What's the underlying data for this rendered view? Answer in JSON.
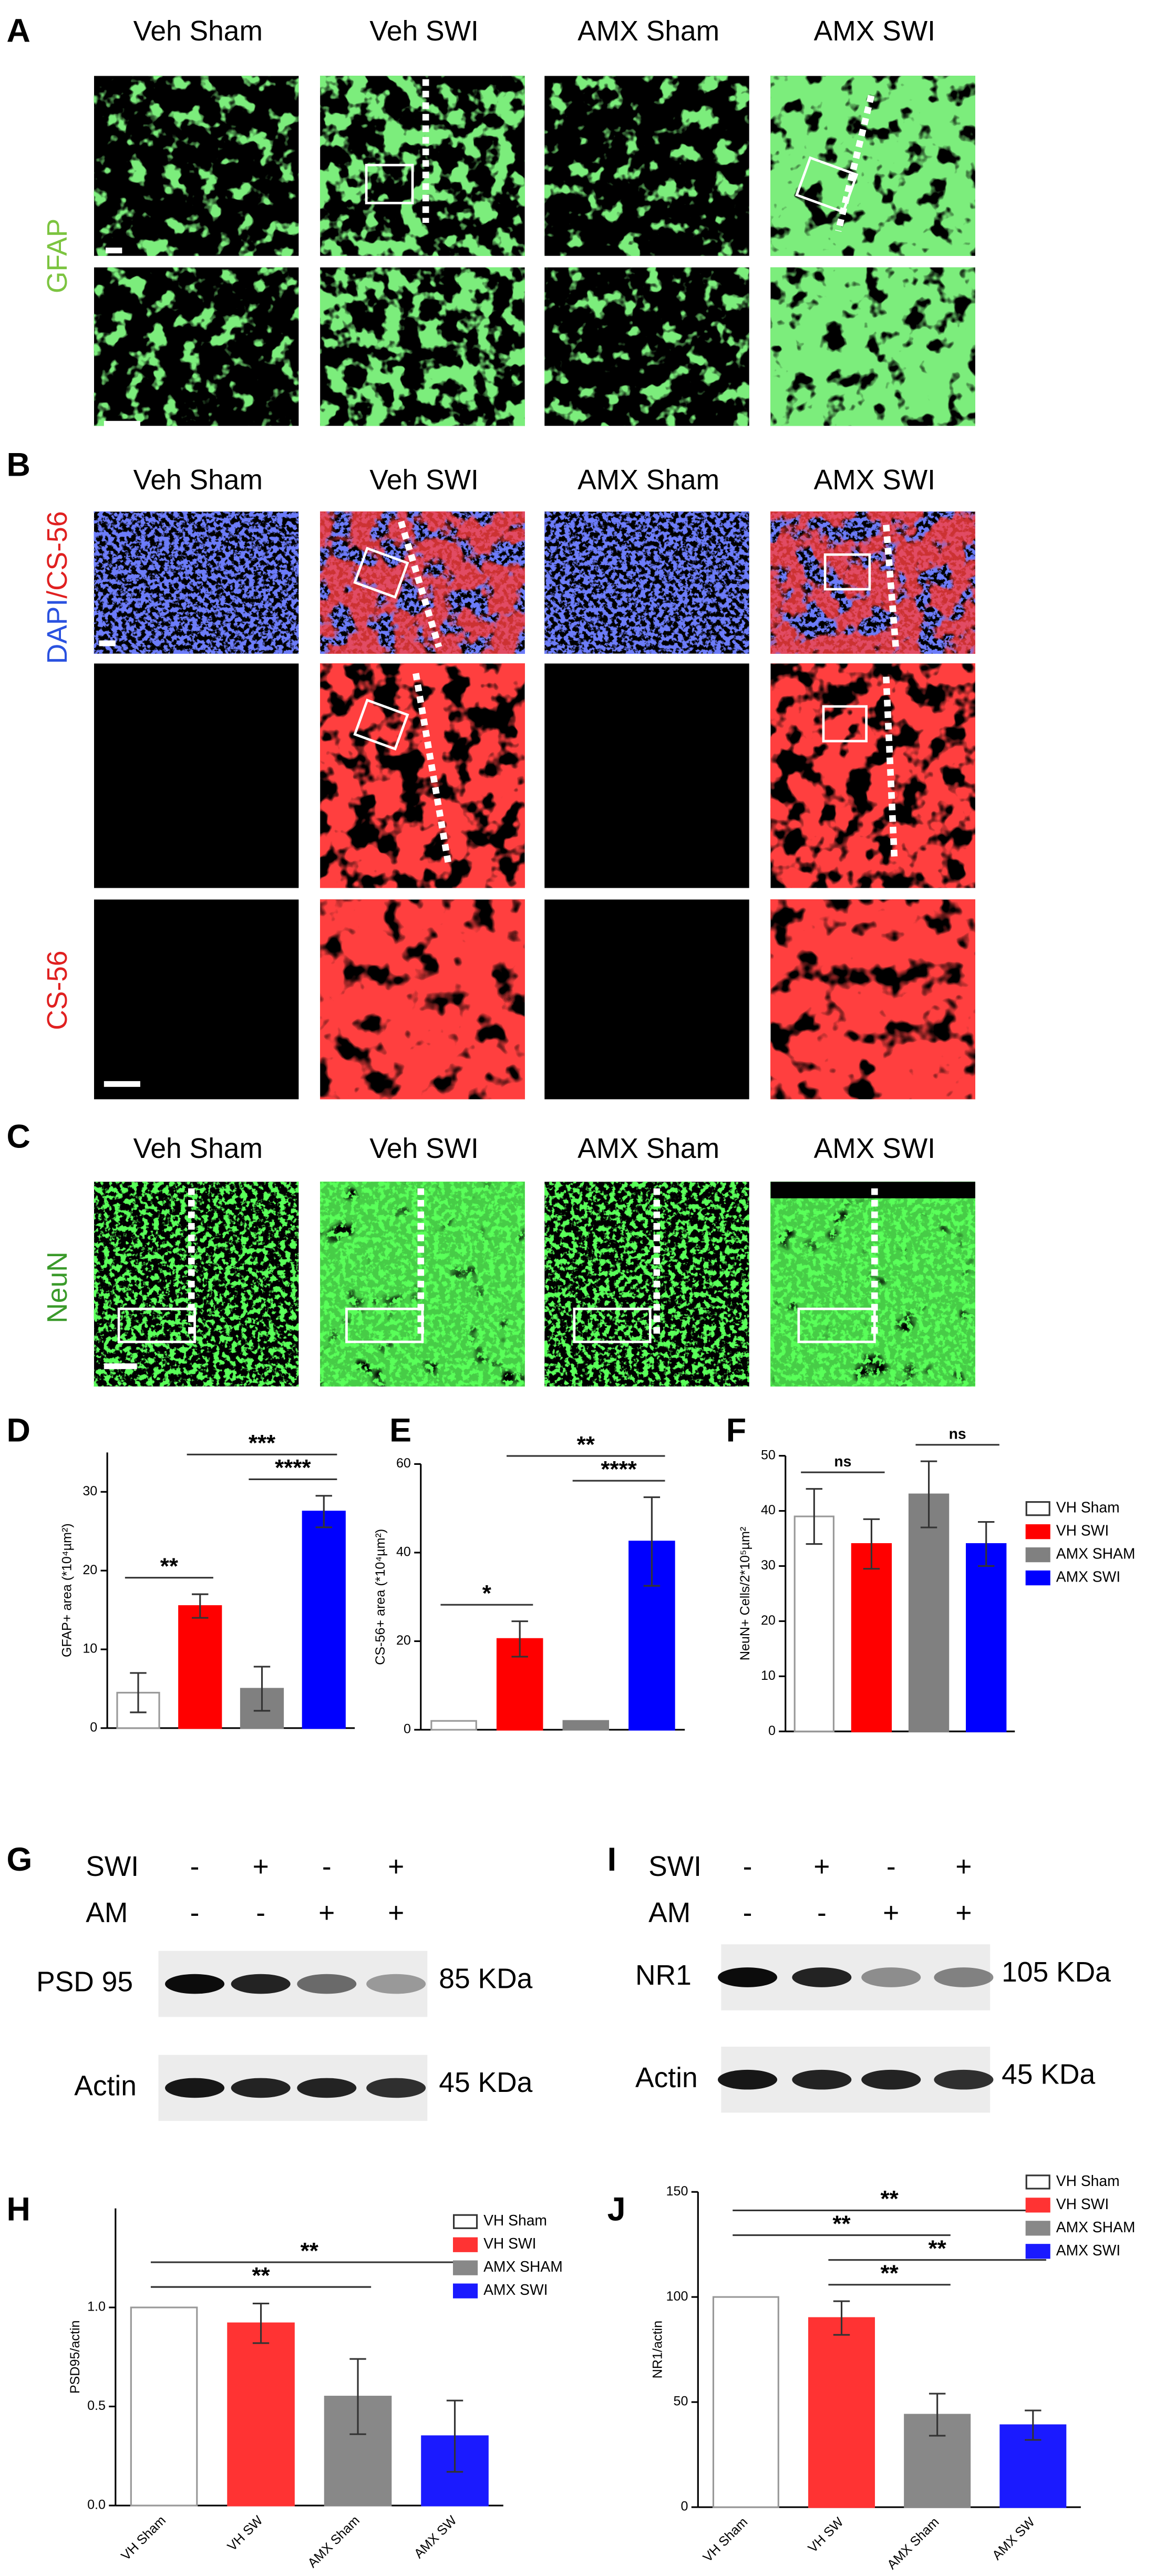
{
  "figure": {
    "panel_A": {
      "label": "A",
      "columns": [
        "Veh Sham",
        "Veh SWI",
        "AMX Sham",
        "AMX SWI"
      ],
      "row_label": "GFAP"
    },
    "panel_B": {
      "label": "B",
      "columns": [
        "Veh Sham",
        "Veh SWI",
        "AMX Sham",
        "AMX SWI"
      ],
      "row_labels": [
        [
          "DAPI",
          "/CS-56"
        ],
        "CS-56"
      ]
    },
    "panel_C": {
      "label": "C",
      "columns": [
        "Veh Sham",
        "Veh SWI",
        "AMX Sham",
        "AMX SWI"
      ],
      "row_label": "NeuN"
    },
    "panel_G": {
      "label": "G",
      "row_labels": [
        "SWI",
        "AM"
      ],
      "signs": [
        [
          "-",
          "+",
          "-",
          "+"
        ],
        [
          "-",
          "-",
          "+",
          "+"
        ]
      ],
      "bands": [
        {
          "name": "PSD 95",
          "size": "85 KDa"
        },
        {
          "name": "Actin",
          "size": "45 KDa"
        }
      ]
    },
    "panel_I": {
      "label": "I",
      "row_labels": [
        "SWI",
        "AM"
      ],
      "signs": [
        [
          "-",
          "+",
          "-",
          "+"
        ],
        [
          "-",
          "-",
          "+",
          "+"
        ]
      ],
      "bands": [
        {
          "name": "NR1",
          "size": "105 KDa"
        },
        {
          "name": "Actin",
          "size": "45 KDa"
        }
      ]
    }
  },
  "chart_data": [
    {
      "type": "bar",
      "panel": "D",
      "ylabel": "GFAP+ area (*10⁴µm²)",
      "values": [
        4.5,
        15.5,
        5,
        27.5
      ],
      "errors": [
        2.5,
        1.5,
        2.8,
        2
      ],
      "colors": [
        "#ffffff",
        "#ff0000",
        "#808080",
        "#0000ff"
      ],
      "ylim": [
        0,
        35
      ],
      "yticks": [
        0,
        10,
        20,
        30
      ],
      "annotations": [
        {
          "text": "**",
          "from": 0,
          "to": 1
        },
        {
          "text": "****",
          "from": 2,
          "to": 3
        },
        {
          "text": "***",
          "from": 1,
          "to": 3
        }
      ]
    },
    {
      "type": "bar",
      "panel": "E",
      "ylabel": "CS-56+ area (*10⁴µm²)",
      "values": [
        2,
        20.5,
        2,
        42.5
      ],
      "errors": [
        null,
        4,
        null,
        10
      ],
      "colors": [
        "#ffffff",
        "#ff0000",
        "#808080",
        "#0000ff"
      ],
      "ylim": [
        0,
        60
      ],
      "yticks": [
        0,
        20,
        40,
        60
      ],
      "annotations": [
        {
          "text": "*",
          "from": 0,
          "to": 1
        },
        {
          "text": "****",
          "from": 2,
          "to": 3
        },
        {
          "text": "**",
          "from": 1,
          "to": 3
        }
      ]
    },
    {
      "type": "bar",
      "panel": "F",
      "ylabel": "NeuN+ Cells/2*10⁵µm²",
      "values": [
        39,
        34,
        43,
        34
      ],
      "errors": [
        5,
        4.5,
        6,
        4
      ],
      "colors": [
        "#ffffff",
        "#ff0000",
        "#808080",
        "#0000ff"
      ],
      "ylim": [
        0,
        50
      ],
      "yticks": [
        0,
        10,
        20,
        30,
        40,
        50
      ],
      "legend": [
        "VH Sham",
        "VH SWI",
        "AMX SHAM",
        "AMX SWI"
      ],
      "annotations": [
        {
          "text": "ns",
          "from": 0,
          "to": 1
        },
        {
          "text": "ns",
          "from": 2,
          "to": 3
        }
      ]
    },
    {
      "type": "bar",
      "panel": "H",
      "ylabel": "PSD95/actin",
      "categories": [
        "VH Sham",
        "VH SW",
        "AMX Sham",
        "AMX SW"
      ],
      "values": [
        1.0,
        0.92,
        0.55,
        0.35
      ],
      "errors": [
        null,
        0.1,
        0.19,
        0.18
      ],
      "colors": [
        "#ffffff",
        "#ff3333",
        "#888888",
        "#1a1aff"
      ],
      "ylim": [
        0,
        1.5
      ],
      "yticks": [
        {
          "value": 0,
          "label": "0.0"
        },
        {
          "value": 0.5,
          "label": "0.5"
        },
        {
          "value": 1,
          "label": "1.0"
        }
      ],
      "legend": [
        "VH Sham",
        "VH SWI",
        "AMX SHAM",
        "AMX SWI"
      ],
      "annotations": [
        {
          "text": "**",
          "from": 0,
          "to": 2
        },
        {
          "text": "**",
          "from": 0,
          "to": 3
        }
      ]
    },
    {
      "type": "bar",
      "panel": "J",
      "ylabel": "NR1/actin",
      "categories": [
        "VH Sham",
        "VH SW",
        "AMX Sham",
        "AMX SW"
      ],
      "values": [
        100,
        90,
        44,
        39
      ],
      "errors": [
        null,
        8,
        10,
        7
      ],
      "colors": [
        "#ffffff",
        "#ff3333",
        "#888888",
        "#1a1aff"
      ],
      "ylim": [
        0,
        150
      ],
      "yticks": [
        0,
        50,
        100,
        150
      ],
      "legend": [
        "VH Sham",
        "VH SWI",
        "AMX SHAM",
        "AMX SWI"
      ],
      "annotations": [
        {
          "text": "**",
          "from": 1,
          "to": 2
        },
        {
          "text": "**",
          "from": 1,
          "to": 3
        },
        {
          "text": "**",
          "from": 0,
          "to": 2
        },
        {
          "text": "**",
          "from": 0,
          "to": 3
        }
      ]
    }
  ]
}
